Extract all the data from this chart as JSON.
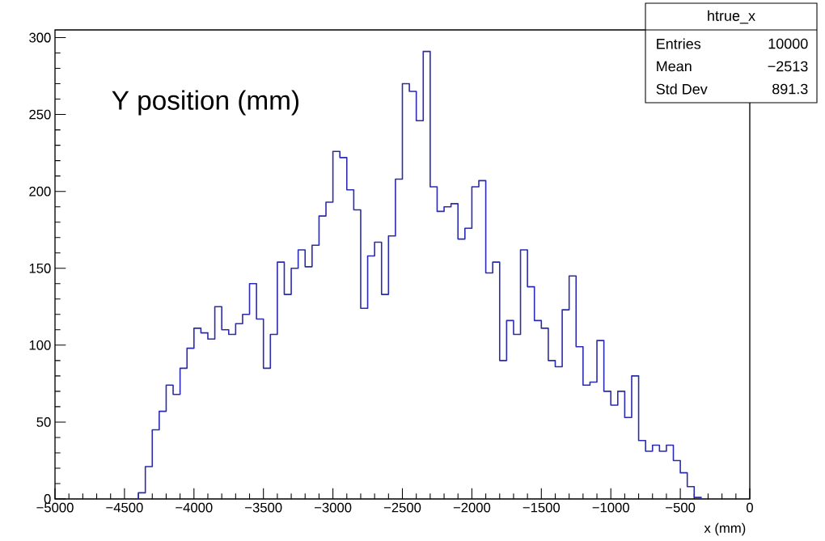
{
  "chart_data": {
    "type": "histogram",
    "title": "Y position (mm)",
    "xlabel": "x (mm)",
    "annotations": [
      "htrue_x",
      "Entries",
      "10000",
      "Mean",
      "−2513",
      "Std Dev",
      "891.3"
    ],
    "color": "#2b2bb0",
    "bins": [
      -4400,
      -4350,
      -4300,
      -4250,
      -4200,
      -4150,
      -4100,
      -4050,
      -4000,
      -3950,
      -3900,
      -3850,
      -3800,
      -3750,
      -3700,
      -3650,
      -3600,
      -3550,
      -3500,
      -3450,
      -3400,
      -3350,
      -3300,
      -3250,
      -3200,
      -3150,
      -3100,
      -3050,
      -3000,
      -2950,
      -2900,
      -2850,
      -2800,
      -2750,
      -2700,
      -2650,
      -2600,
      -2550,
      -2500,
      -2450,
      -2400,
      -2350,
      -2300,
      -2250,
      -2200,
      -2150,
      -2100,
      -2050,
      -2000,
      -1950,
      -1900,
      -1850,
      -1800,
      -1750,
      -1700,
      -1650,
      -1600,
      -1550,
      -1500,
      -1450,
      -1400,
      -1350,
      -1300,
      -1250,
      -1200,
      -1150,
      -1100,
      -1050,
      -1000,
      -950,
      -900,
      -850,
      -800,
      -750,
      -700,
      -650,
      -600,
      -550,
      -500,
      -450,
      -400,
      -350
    ],
    "values": [
      4,
      21,
      45,
      57,
      74,
      68,
      85,
      98,
      111,
      108,
      104,
      125,
      110,
      107,
      114,
      120,
      140,
      117,
      85,
      107,
      154,
      133,
      150,
      162,
      151,
      165,
      184,
      193,
      226,
      222,
      201,
      188,
      124,
      158,
      167,
      133,
      171,
      208,
      270,
      265,
      246,
      291,
      203,
      187,
      190,
      192,
      169,
      176,
      203,
      207,
      147,
      154,
      90,
      116,
      107,
      162,
      138,
      116,
      111,
      90,
      86,
      123,
      145,
      99,
      74,
      76,
      103,
      70,
      61,
      70,
      53,
      80,
      38,
      31,
      35,
      31,
      35,
      25,
      17,
      8,
      1
    ],
    "xlim": [
      -5000,
      0
    ],
    "ylim": [
      0,
      305
    ],
    "xticks": [
      {
        "value": -5000,
        "label": "−5000"
      },
      {
        "value": -4500,
        "label": "−4500"
      },
      {
        "value": -4000,
        "label": "−4000"
      },
      {
        "value": -3500,
        "label": "−3500"
      },
      {
        "value": -3000,
        "label": "−3000"
      },
      {
        "value": -2500,
        "label": "−2500"
      },
      {
        "value": -2000,
        "label": "−2000"
      },
      {
        "value": -1500,
        "label": "−1500"
      },
      {
        "value": -1000,
        "label": "−1000"
      },
      {
        "value": -500,
        "label": "−500"
      },
      0
    ],
    "yticks": [
      0,
      50,
      100,
      150,
      200,
      250,
      300
    ]
  }
}
